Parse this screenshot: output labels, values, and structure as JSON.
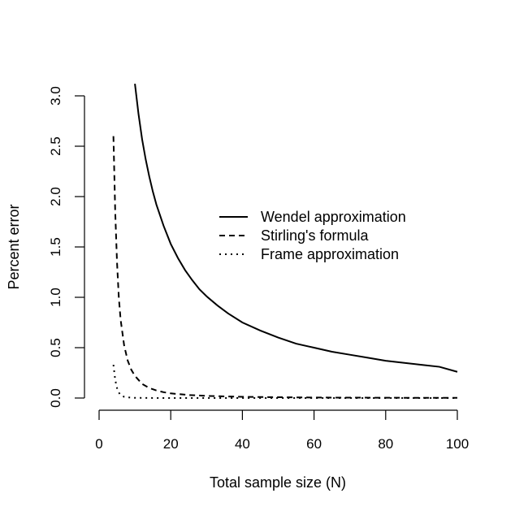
{
  "chart_data": {
    "type": "line",
    "title": "",
    "xlabel": "Total sample size (N)",
    "ylabel": "Percent error",
    "xlim": [
      0,
      100
    ],
    "ylim": [
      0,
      3.0
    ],
    "x_ticks": [
      0,
      20,
      40,
      60,
      80,
      100
    ],
    "x_tick_labels": [
      "0",
      "20",
      "40",
      "60",
      "80",
      "100"
    ],
    "y_ticks": [
      0,
      0.5,
      1.0,
      1.5,
      2.0,
      2.5,
      3.0
    ],
    "y_tick_labels": [
      "0.0",
      "0.5",
      "1.0",
      "1.5",
      "2.0",
      "2.5",
      "3.0"
    ],
    "grid": false,
    "legend_position": "right-center",
    "series": [
      {
        "name": "Wendel approximation",
        "line_style": "solid",
        "color": "#000000",
        "points": [
          [
            10,
            3.12
          ],
          [
            11,
            2.82
          ],
          [
            12,
            2.57
          ],
          [
            13,
            2.37
          ],
          [
            14,
            2.2
          ],
          [
            15,
            2.05
          ],
          [
            16,
            1.92
          ],
          [
            18,
            1.71
          ],
          [
            20,
            1.53
          ],
          [
            22,
            1.39
          ],
          [
            24,
            1.27
          ],
          [
            26,
            1.17
          ],
          [
            28,
            1.08
          ],
          [
            30,
            1.01
          ],
          [
            33,
            0.92
          ],
          [
            36,
            0.84
          ],
          [
            40,
            0.75
          ],
          [
            45,
            0.67
          ],
          [
            50,
            0.6
          ],
          [
            55,
            0.54
          ],
          [
            60,
            0.5
          ],
          [
            65,
            0.46
          ],
          [
            70,
            0.43
          ],
          [
            75,
            0.4
          ],
          [
            80,
            0.37
          ],
          [
            85,
            0.35
          ],
          [
            90,
            0.33
          ],
          [
            95,
            0.31
          ],
          [
            100,
            0.26
          ]
        ]
      },
      {
        "name": "Stirling's formula",
        "line_style": "dashed",
        "color": "#000000",
        "points": [
          [
            4,
            2.6
          ],
          [
            4.5,
            1.85
          ],
          [
            5,
            1.35
          ],
          [
            5.5,
            1.0
          ],
          [
            6,
            0.78
          ],
          [
            7,
            0.52
          ],
          [
            8,
            0.37
          ],
          [
            9,
            0.28
          ],
          [
            10,
            0.22
          ],
          [
            12,
            0.14
          ],
          [
            14,
            0.1
          ],
          [
            16,
            0.075
          ],
          [
            18,
            0.058
          ],
          [
            20,
            0.046
          ],
          [
            25,
            0.03
          ],
          [
            30,
            0.021
          ],
          [
            40,
            0.012
          ],
          [
            50,
            0.008
          ],
          [
            60,
            0.005
          ],
          [
            70,
            0.004
          ],
          [
            80,
            0.003
          ],
          [
            90,
            0.002
          ],
          [
            100,
            0.002
          ]
        ]
      },
      {
        "name": "Frame approximation",
        "line_style": "dotted",
        "color": "#000000",
        "points": [
          [
            4,
            0.33
          ],
          [
            4.5,
            0.18
          ],
          [
            5,
            0.1
          ],
          [
            5.5,
            0.055
          ],
          [
            6,
            0.03
          ],
          [
            7,
            0.012
          ],
          [
            8,
            0.006
          ],
          [
            10,
            0.002
          ],
          [
            15,
            0.0005
          ],
          [
            20,
            0.0002
          ],
          [
            30,
            0.0
          ],
          [
            50,
            0.0
          ],
          [
            70,
            0.0
          ],
          [
            90,
            0.0
          ],
          [
            100,
            0.0
          ]
        ]
      }
    ]
  }
}
